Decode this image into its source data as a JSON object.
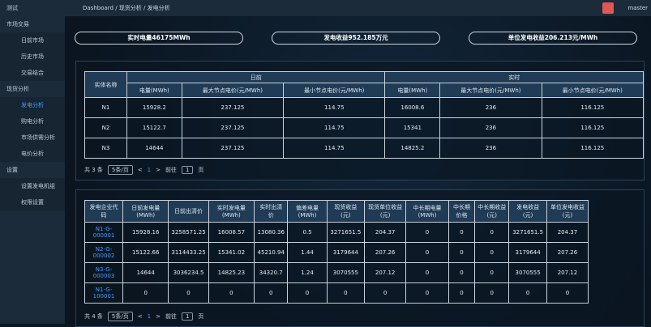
{
  "sidebar": {
    "items": [
      {
        "label": "测试"
      },
      {
        "label": "市场交易",
        "children": [
          "日前市场",
          "历史市场",
          "交易结合"
        ]
      },
      {
        "label": "现货分析",
        "children": [
          "发电分析",
          "购电分析",
          "市场供需分析",
          "电价分析"
        ]
      },
      {
        "label": "设置",
        "children": [
          "设置发电机组",
          "权限设置"
        ]
      }
    ]
  },
  "header": {
    "breadcrumb": [
      "Dashboard",
      "/",
      "现货分析",
      "/",
      "发电分析"
    ],
    "user": "master"
  },
  "stats": [
    "实时电量46175MWh",
    "发电收益952.185万元",
    "单位发电收益206.213元/MWh"
  ],
  "table1": {
    "name_header": "实体名称",
    "groups": [
      "日前",
      "实时"
    ],
    "columns": [
      "电量(MWh)",
      "最大节点电价(元/MWh)",
      "最小节点电价(元/MWh)",
      "电量(MWh)",
      "最大节点电价(元/MWh)",
      "最小节点电价(元/MWh)"
    ],
    "rows": [
      [
        "N1",
        15928.2,
        237.125,
        114.75,
        16008.6,
        236,
        116.125
      ],
      [
        "N2",
        15122.7,
        237.125,
        114.75,
        15341,
        236,
        116.125
      ],
      [
        "N3",
        14644,
        237.125,
        114.75,
        14825.2,
        236,
        116.125
      ]
    ]
  },
  "pagination1": {
    "total": "共 3 条",
    "page_size": "5条/页",
    "prev": "<",
    "page": "1",
    "next": ">",
    "goto": "前往",
    "goto_value": "1",
    "unit": "页"
  },
  "table2": {
    "columns": [
      "发电企业代码",
      "日前发电量(MWh)",
      "日前出清价",
      "实时发电量(MWh)",
      "实时出清价",
      "偏差电量(MWh)",
      "现货收益(元)",
      "现货单位收益(元)",
      "中长期电量(MWh)",
      "中长期价格",
      "中长期收益(元)",
      "发电收益(元)",
      "单位发电收益(元)"
    ],
    "rows": [
      [
        "N1-G-000001",
        15928.16,
        3258571.25,
        16008.57,
        13080.36,
        0.5,
        3271651.5,
        204.37,
        0,
        0,
        0,
        3271651.5,
        204.37
      ],
      [
        "N2-G-000002",
        15122.66,
        3114433.25,
        15341.02,
        45210.94,
        1.44,
        3179644,
        207.26,
        0,
        0,
        0,
        3179644,
        207.26
      ],
      [
        "N3-G-000003",
        14644,
        3036234.5,
        14825.23,
        34320.7,
        1.24,
        3070555,
        207.12,
        0,
        0,
        0,
        3070555,
        207.12
      ],
      [
        "N1-G-100001",
        0,
        0,
        0,
        0,
        0,
        0,
        0,
        0,
        0,
        0,
        0,
        0
      ]
    ]
  },
  "pagination2": {
    "total": "共 4 条",
    "page_size": "5条/页",
    "prev": "<",
    "page": "1",
    "next": ">",
    "goto": "前往",
    "goto_value": "1",
    "unit": "页"
  }
}
